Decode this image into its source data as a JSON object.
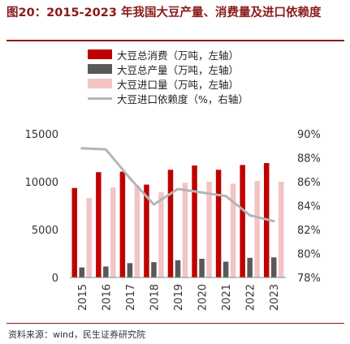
{
  "title": "图20：2015-2023 年我国大豆产量、消费量及进口依赖度",
  "source": "资料来源：wind，民生证券研究院",
  "colors": {
    "consumption": "#c00000",
    "production": "#595959",
    "import": "#f2c4c4",
    "dependency": "#b5b5b5",
    "title": "#8b1a1a"
  },
  "chart_data": {
    "type": "bar",
    "categories": [
      "2015",
      "2016",
      "2017",
      "2018",
      "2019",
      "2020",
      "2021",
      "2022",
      "2023"
    ],
    "series": [
      {
        "name": "大豆总消费（万吨，左轴）",
        "type": "bar",
        "axis": "left",
        "values": [
          9350,
          11000,
          11050,
          9700,
          11250,
          11700,
          11250,
          11750,
          11950
        ]
      },
      {
        "name": "大豆总产量（万吨，左轴）",
        "type": "bar",
        "axis": "left",
        "values": [
          1050,
          1150,
          1500,
          1600,
          1800,
          1950,
          1650,
          2050,
          2100
        ]
      },
      {
        "name": "大豆进口量（万吨，左轴）",
        "type": "bar",
        "axis": "left",
        "values": [
          8300,
          9400,
          9600,
          8900,
          9900,
          10000,
          9800,
          10100,
          10000
        ]
      },
      {
        "name": "大豆进口依赖度（%，右轴）",
        "type": "line",
        "axis": "right",
        "values": [
          88.8,
          88.7,
          86.3,
          84.1,
          85.4,
          85.1,
          84.8,
          83.2,
          82.7
        ]
      }
    ],
    "y_left": {
      "min": 0,
      "max": 15000,
      "ticks": [
        "0",
        "5000",
        "10000",
        "15000"
      ]
    },
    "y_right": {
      "min": 78,
      "max": 90,
      "ticks": [
        "78%",
        "80%",
        "82%",
        "84%",
        "86%",
        "88%",
        "90%"
      ]
    },
    "legend_position": "top",
    "grid": false
  }
}
